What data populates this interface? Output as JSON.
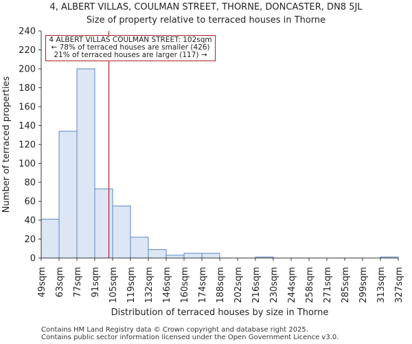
{
  "chart_data": {
    "type": "bar",
    "title": "4, ALBERT VILLAS, COULMAN STREET, THORNE, DONCASTER, DN8 5JL",
    "subtitle": "Size of property relative to terraced houses in Thorne",
    "xlabel": "Distribution of terraced houses by size in Thorne",
    "ylabel": "Number of terraced properties",
    "ylim": [
      0,
      240
    ],
    "yticks": [
      0,
      20,
      40,
      60,
      80,
      100,
      120,
      140,
      160,
      180,
      200,
      220,
      240
    ],
    "tick_labels": [
      "49sqm",
      "63sqm",
      "77sqm",
      "91sqm",
      "105sqm",
      "119sqm",
      "132sqm",
      "146sqm",
      "160sqm",
      "174sqm",
      "188sqm",
      "202sqm",
      "216sqm",
      "230sqm",
      "244sqm",
      "258sqm",
      "271sqm",
      "285sqm",
      "299sqm",
      "313sqm",
      "327sqm"
    ],
    "values": [
      41,
      134,
      200,
      73,
      55,
      22,
      9,
      3,
      5,
      5,
      0,
      0,
      1,
      0,
      0,
      0,
      0,
      0,
      0,
      1
    ],
    "marker_bin_position": 3.79,
    "annotation": [
      "4 ALBERT VILLAS COULMAN STREET: 102sqm",
      "← 78% of terraced houses are smaller (426)",
      "21% of terraced houses are larger (117) →"
    ],
    "bar_color": "#dde6f5",
    "bar_edge_color": "#5a86c4",
    "marker_color": "#b01c24"
  },
  "footer": {
    "line1": "Contains HM Land Registry data © Crown copyright and database right 2025.",
    "line2": "Contains public sector information licensed under the Open Government Licence v3.0."
  }
}
